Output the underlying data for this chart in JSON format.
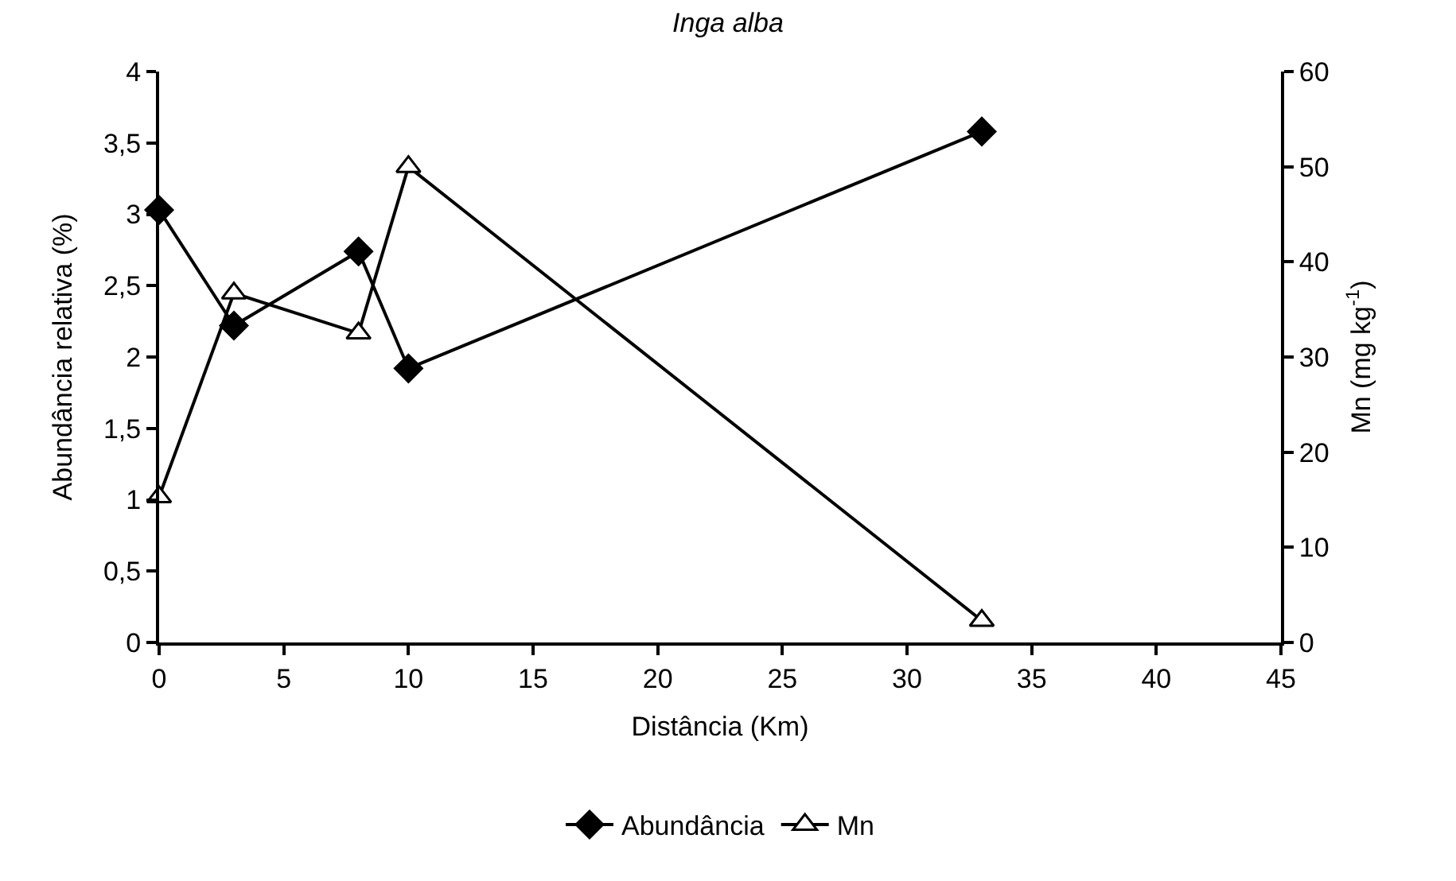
{
  "chart_data": {
    "type": "line",
    "title": "Inga alba",
    "xlabel": "Distância (Km)",
    "ylabel": "Abundância relativa (%)",
    "y2label": "Mn (mg kg$^{-1}$)",
    "x": [
      0,
      3,
      8,
      10,
      33
    ],
    "series": [
      {
        "name": "Abundância",
        "color": "#000000",
        "values": [
          3.03,
          2.22,
          2.74,
          1.92,
          3.58
        ],
        "marker": "diamond"
      },
      {
        "name": "Mn",
        "color": "#000000",
        "values": [
          15.3,
          36.7,
          32.5,
          50,
          2.3
        ],
        "marker": "triangle",
        "axis": "y2"
      }
    ],
    "xlim": [
      0,
      45
    ],
    "xticks": [
      0,
      5,
      10,
      15,
      20,
      25,
      30,
      35,
      40,
      45
    ],
    "ylim": [
      0,
      4
    ],
    "yticks": [
      0,
      {
        "value": 0.5,
        "label": "0,5"
      },
      1,
      {
        "value": 1.5,
        "label": "1,5"
      },
      2,
      {
        "value": 2.5,
        "label": "2,5"
      },
      3,
      {
        "value": 3.5,
        "label": "3,5"
      },
      4
    ],
    "y2lim": [
      0,
      60
    ],
    "y2ticks": [
      0,
      10,
      20,
      30,
      40,
      50,
      60
    ],
    "legend": "bottom",
    "line_style": "solid"
  }
}
